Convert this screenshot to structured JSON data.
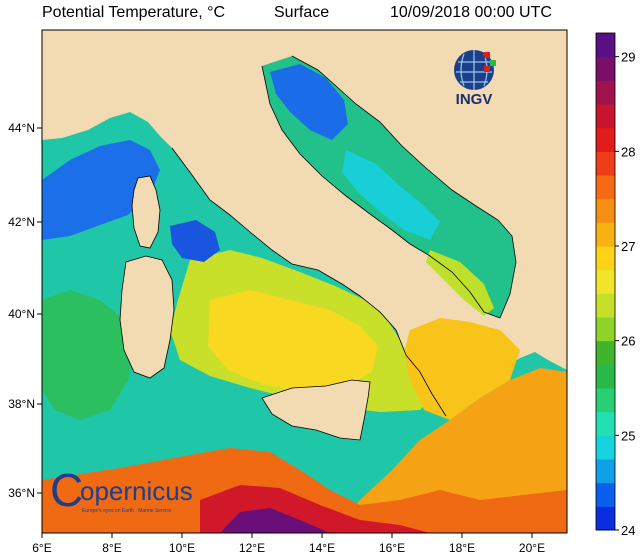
{
  "title": {
    "variable": "Potential Temperature, °C",
    "level": "Surface",
    "datetime": "10/09/2018 00:00 UTC"
  },
  "map": {
    "lon_range": [
      6,
      21
    ],
    "lat_range": [
      35,
      46
    ],
    "lon_ticks": [
      "6°E",
      "8°E",
      "10°E",
      "12°E",
      "14°E",
      "16°E",
      "18°E",
      "20°E"
    ],
    "lat_ticks": [
      "36°N",
      "38°N",
      "40°N",
      "42°N",
      "44°N"
    ],
    "land_color": "#f2dbb3",
    "sea_fields": {
      "west_cool_basin": "24.5 °C",
      "tyrrhenian": "26.5 °C",
      "ionian": "27.5 °C",
      "south_sicily_channel": "28.5–29 °C",
      "north_adriatic": "24 °C"
    }
  },
  "colorbar": {
    "min": 24,
    "max": 29.25,
    "labels": [
      "24",
      "25",
      "26",
      "27",
      "28",
      "29"
    ],
    "colors": [
      "#0b2de0",
      "#0b5ff0",
      "#0fa0e8",
      "#15d4e0",
      "#22e0b0",
      "#2bcf73",
      "#29b84a",
      "#3fb52e",
      "#8fd22a",
      "#c6e02a",
      "#f0e52a",
      "#fcd316",
      "#f8b312",
      "#f59012",
      "#f56a12",
      "#f03c18",
      "#e01c1c",
      "#c8142e",
      "#a0124e",
      "#7a0f6a",
      "#5a0f82"
    ]
  },
  "logos": {
    "ingv_label": "INGV",
    "copernicus_prefix": "C",
    "copernicus_word": "opernicus",
    "copernicus_tagline": "Europe's eyes on Earth · Marine Service"
  }
}
